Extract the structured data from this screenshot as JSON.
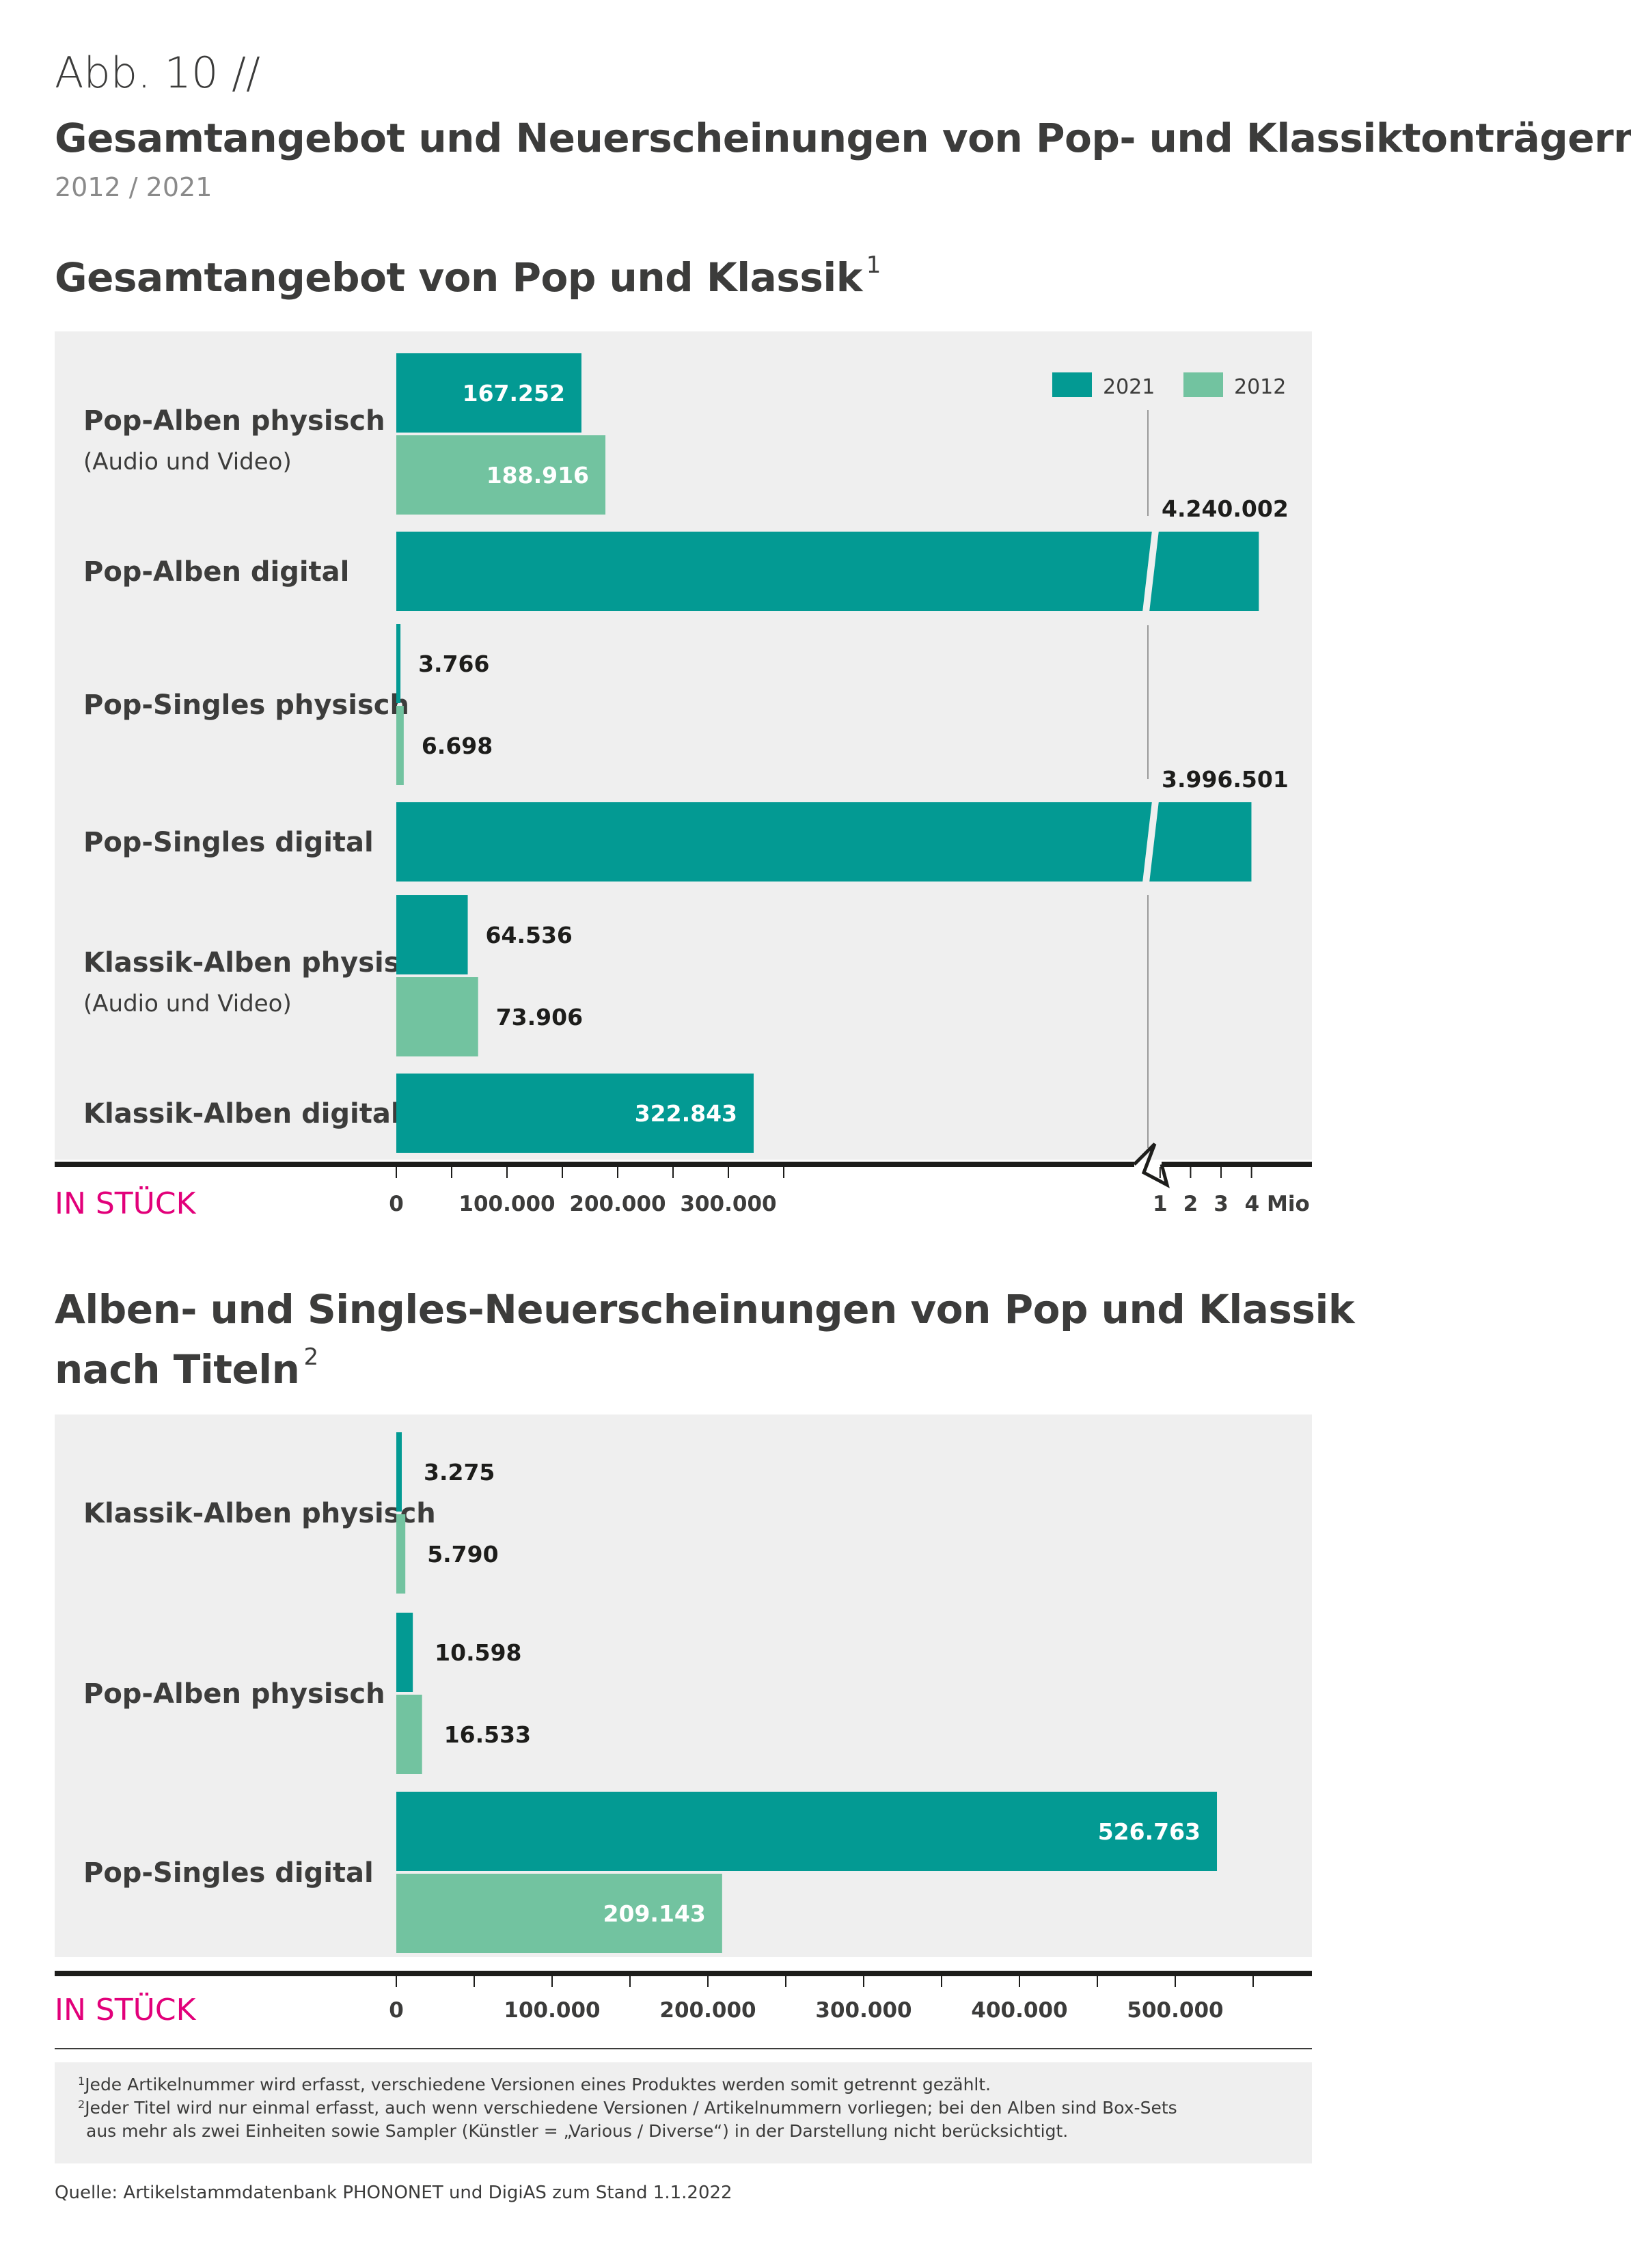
{
  "header": {
    "figure_label": "Abb. 10 //",
    "title": "Gesamtangebot und Neuerscheinungen von Pop- und Klassiktonträgern",
    "years": "2012 / 2021"
  },
  "colors": {
    "series_2021": "#039a93",
    "series_2012": "#72c3a0",
    "panel_bg": "#efefef",
    "accent_label": "#e2007a",
    "text": "#3c3c3b"
  },
  "chart_data": [
    {
      "type": "bar",
      "orientation": "horizontal",
      "title": "Gesamtangebot von Pop und Klassik",
      "title_footnote": "1",
      "unit_label": "IN STÜCK",
      "legend": [
        "2021",
        "2012"
      ],
      "legend_position": "top-right",
      "axis_break": true,
      "xticks_linear": [
        "0",
        "100.000",
        "200.000",
        "300.000"
      ],
      "xticks_after_break": [
        "1",
        "2",
        "3",
        "4 Mio"
      ],
      "categories": [
        {
          "label": "Pop-Alben physisch",
          "sublabel": "(Audio und Video)",
          "values": [
            {
              "series": "2021",
              "value": 167252,
              "label": "167.252"
            },
            {
              "series": "2012",
              "value": 188916,
              "label": "188.916"
            }
          ]
        },
        {
          "label": "Pop-Alben digital",
          "sublabel": "",
          "values": [
            {
              "series": "2021",
              "value": 4240002,
              "label": "4.240.002"
            }
          ]
        },
        {
          "label": "Pop-Singles physisch",
          "sublabel": "",
          "values": [
            {
              "series": "2021",
              "value": 3766,
              "label": "3.766"
            },
            {
              "series": "2012",
              "value": 6698,
              "label": "6.698"
            }
          ]
        },
        {
          "label": "Pop-Singles digital",
          "sublabel": "",
          "values": [
            {
              "series": "2021",
              "value": 3996501,
              "label": "3.996.501"
            }
          ]
        },
        {
          "label": "Klassik-Alben physisch",
          "sublabel": "(Audio und Video)",
          "values": [
            {
              "series": "2021",
              "value": 64536,
              "label": "64.536"
            },
            {
              "series": "2012",
              "value": 73906,
              "label": "73.906"
            }
          ]
        },
        {
          "label": "Klassik-Alben digital",
          "sublabel": "",
          "values": [
            {
              "series": "2021",
              "value": 322843,
              "label": "322.843"
            }
          ]
        }
      ]
    },
    {
      "type": "bar",
      "orientation": "horizontal",
      "title_line1": "Alben- und Singles-Neuerscheinungen von Pop und Klassik",
      "title_line2": "nach Titeln",
      "title_footnote": "2",
      "unit_label": "IN STÜCK",
      "xlim": [
        0,
        550000
      ],
      "xticks": [
        "0",
        "100.000",
        "200.000",
        "300.000",
        "400.000",
        "500.000"
      ],
      "categories": [
        {
          "label": "Klassik-Alben physisch",
          "values": [
            {
              "series": "2021",
              "value": 3275,
              "label": "3.275"
            },
            {
              "series": "2012",
              "value": 5790,
              "label": "5.790"
            }
          ]
        },
        {
          "label": "Pop-Alben physisch",
          "values": [
            {
              "series": "2021",
              "value": 10598,
              "label": "10.598"
            },
            {
              "series": "2012",
              "value": 16533,
              "label": "16.533"
            }
          ]
        },
        {
          "label": "Pop-Singles digital",
          "values": [
            {
              "series": "2021",
              "value": 526763,
              "label": "526.763"
            },
            {
              "series": "2012",
              "value": 209143,
              "label": "209.143"
            }
          ]
        }
      ]
    }
  ],
  "footnotes": {
    "fn1_num": "1",
    "fn1": "Jede Artikelnummer wird erfasst, verschiedene Versionen eines Produktes werden somit getrennt gezählt.",
    "fn2_num": "2",
    "fn2_line1": "Jeder Titel wird nur einmal erfasst, auch wenn verschiedene Versionen / Artikelnummern vorliegen; bei den Alben sind Box-Sets",
    "fn2_line2": "aus mehr als zwei Einheiten sowie Sampler (Künstler = „Various / Diverse“) in der Darstellung nicht berücksichtigt."
  },
  "source": "Quelle: Artikelstammdatenbank PHONONET und DigiAS zum Stand 1.1.2022"
}
